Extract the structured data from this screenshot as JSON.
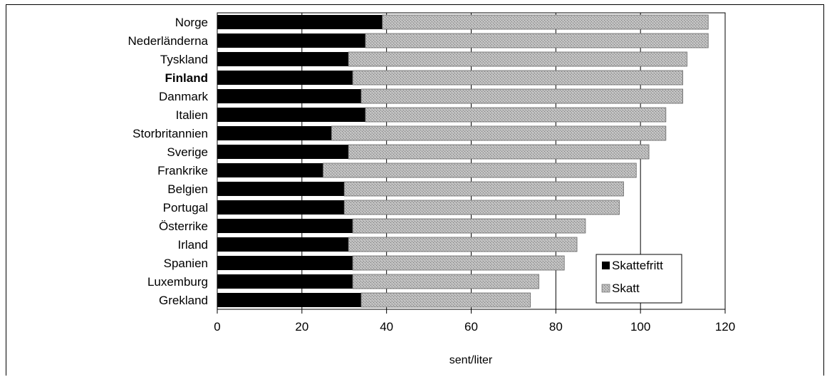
{
  "chart_data": {
    "type": "bar",
    "orientation": "horizontal",
    "stacked": true,
    "categories": [
      "Norge",
      "Nederländerna",
      "Tyskland",
      "Finland",
      "Danmark",
      "Italien",
      "Storbritannien",
      "Sverige",
      "Frankrike",
      "Belgien",
      "Portugal",
      "Österrike",
      "Irland",
      "Spanien",
      "Luxemburg",
      "Grekland"
    ],
    "highlighted_category": "Finland",
    "series": [
      {
        "name": "Skattefritt",
        "color": "#000000",
        "values": [
          39,
          35,
          31,
          32,
          34,
          35,
          27,
          31,
          25,
          30,
          30,
          32,
          31,
          32,
          32,
          34
        ]
      },
      {
        "name": "Skatt",
        "color": "#a8a8a8",
        "values": [
          77,
          81,
          80,
          78,
          76,
          71,
          79,
          71,
          74,
          66,
          65,
          55,
          54,
          50,
          44,
          40
        ]
      }
    ],
    "xlabel": "sent/liter",
    "ylabel": "",
    "xlim": [
      0,
      120
    ],
    "xticks": [
      "0",
      "20",
      "40",
      "60",
      "80",
      "100",
      "120"
    ],
    "grid": "vertical",
    "legend_position": "bottom-right"
  }
}
